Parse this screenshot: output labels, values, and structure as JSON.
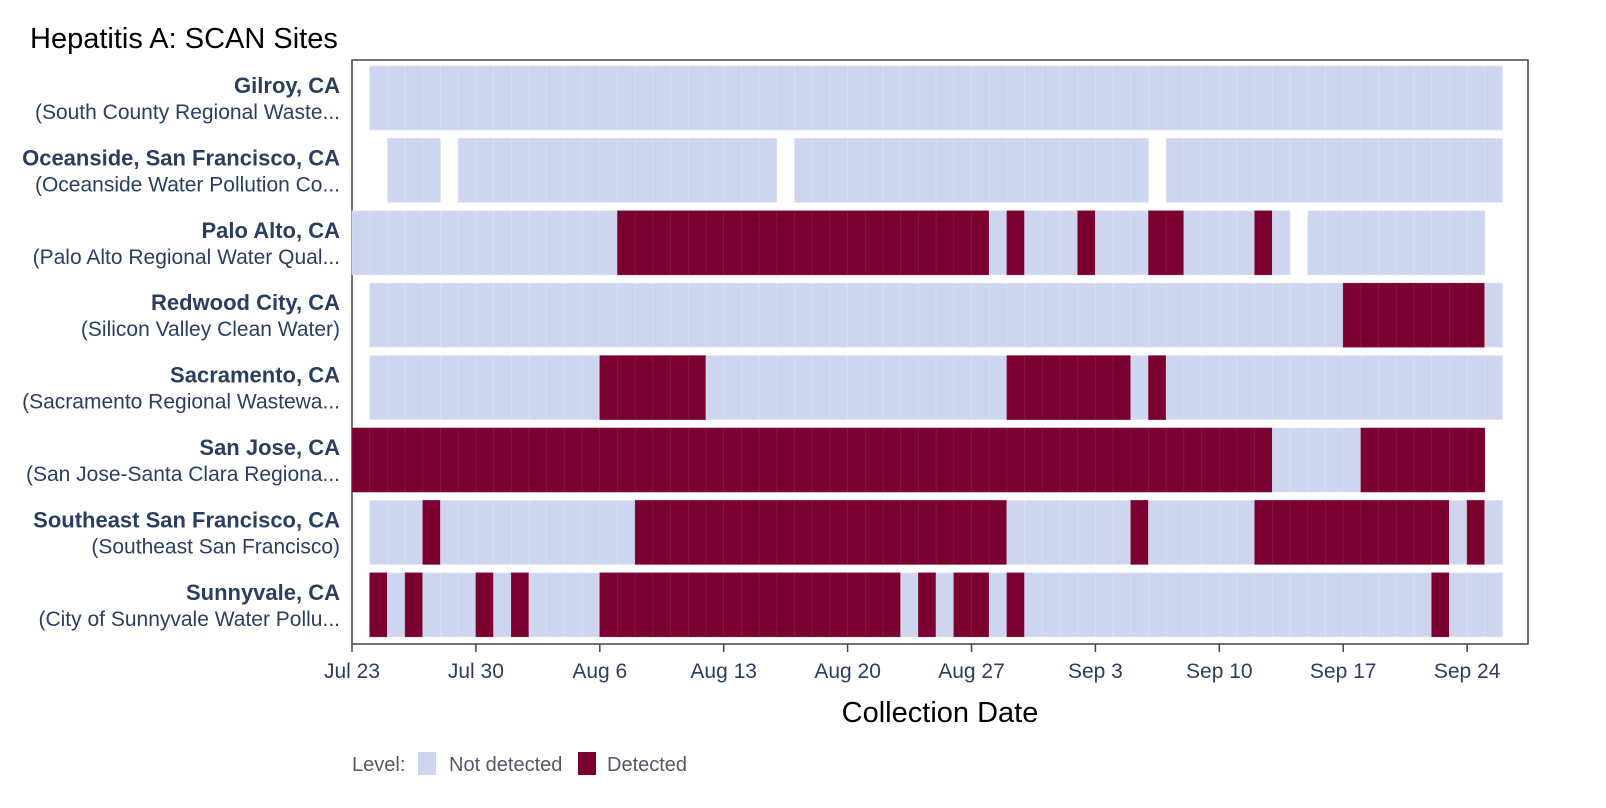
{
  "chart_data": {
    "type": "heatmap",
    "title": "Hepatitis A: SCAN Sites",
    "xlabel": "Collection Date",
    "x_ticks": [
      "Jul 23",
      "Jul 30",
      "Aug 6",
      "Aug 13",
      "Aug 20",
      "Aug 27",
      "Sep 3",
      "Sep 10",
      "Sep 17",
      "Sep 24"
    ],
    "x_range_days_from_jul23": [
      0,
      65
    ],
    "legend": {
      "title": "Level:",
      "items": [
        {
          "label": "Not detected",
          "color": "#cdd6ee"
        },
        {
          "label": "Detected",
          "color": "#7a0030"
        }
      ]
    },
    "sites": [
      {
        "name": "Gilroy, CA",
        "facility": "(South County Regional Waste...",
        "gaps": [
          [
            0,
            1
          ]
        ],
        "detected": []
      },
      {
        "name": "Oceanside, San Francisco, CA",
        "facility": "(Oceanside Water Pollution Co...",
        "gaps": [
          [
            0,
            2
          ],
          [
            5,
            6
          ],
          [
            24,
            25
          ],
          [
            45,
            46
          ]
        ],
        "detected": []
      },
      {
        "name": "Palo Alto, CA",
        "facility": "(Palo Alto Regional Water Qual...",
        "gaps": [
          [
            53,
            54
          ],
          [
            64,
            65
          ]
        ],
        "detected": [
          [
            15,
            36
          ],
          [
            37,
            38
          ],
          [
            41,
            42
          ],
          [
            45,
            47
          ],
          [
            51,
            52
          ]
        ]
      },
      {
        "name": "Redwood City, CA",
        "facility": "(Silicon Valley Clean Water)",
        "gaps": [
          [
            0,
            1
          ]
        ],
        "detected": [
          [
            56,
            64
          ]
        ]
      },
      {
        "name": "Sacramento, CA",
        "facility": "(Sacramento Regional Wastewa...",
        "gaps": [
          [
            0,
            1
          ]
        ],
        "detected": [
          [
            14,
            20
          ],
          [
            37,
            44
          ],
          [
            45,
            46
          ]
        ]
      },
      {
        "name": "San Jose, CA",
        "facility": "(San Jose-Santa Clara Regiona...",
        "gaps": [
          [
            64,
            65
          ]
        ],
        "detected": [
          [
            0,
            52
          ],
          [
            57,
            64
          ]
        ]
      },
      {
        "name": "Southeast San Francisco, CA",
        "facility": "(Southeast San Francisco)",
        "gaps": [
          [
            0,
            1
          ]
        ],
        "detected": [
          [
            4,
            5
          ],
          [
            16,
            37
          ],
          [
            44,
            45
          ],
          [
            51,
            62
          ],
          [
            63,
            64
          ]
        ]
      },
      {
        "name": "Sunnyvale, CA",
        "facility": "(City of Sunnyvale Water Pollu...",
        "gaps": [
          [
            0,
            1
          ]
        ],
        "detected": [
          [
            1,
            2
          ],
          [
            3,
            4
          ],
          [
            7,
            8
          ],
          [
            9,
            10
          ],
          [
            14,
            31
          ],
          [
            32,
            33
          ],
          [
            34,
            36
          ],
          [
            37,
            38
          ],
          [
            61,
            62
          ]
        ]
      }
    ]
  }
}
